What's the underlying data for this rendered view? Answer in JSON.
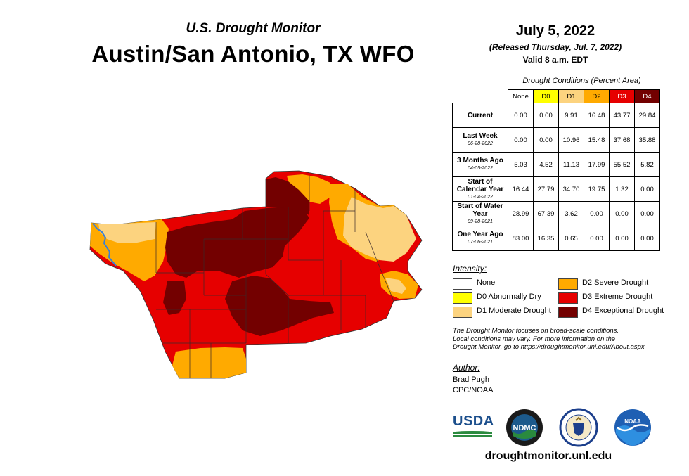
{
  "header": {
    "subtitle": "U.S. Drought Monitor",
    "title": "Austin/San Antonio, TX WFO"
  },
  "info": {
    "date": "July 5, 2022",
    "released": "(Released Thursday, Jul. 7, 2022)",
    "valid": "Valid 8 a.m. EDT"
  },
  "table": {
    "caption": "Drought Conditions (Percent Area)",
    "columns": [
      "None",
      "D0",
      "D1",
      "D2",
      "D3",
      "D4"
    ],
    "rows": [
      {
        "label": "Current",
        "sub": "",
        "values": [
          "0.00",
          "0.00",
          "9.91",
          "16.48",
          "43.77",
          "29.84"
        ]
      },
      {
        "label": "Last Week",
        "sub": "06-28-2022",
        "values": [
          "0.00",
          "0.00",
          "10.96",
          "15.48",
          "37.68",
          "35.88"
        ]
      },
      {
        "label": "3 Months Ago",
        "sub": "04-05-2022",
        "values": [
          "5.03",
          "4.52",
          "11.13",
          "17.99",
          "55.52",
          "5.82"
        ]
      },
      {
        "label": "Start of Calendar Year",
        "sub": "01-04-2022",
        "values": [
          "16.44",
          "27.79",
          "34.70",
          "19.75",
          "1.32",
          "0.00"
        ]
      },
      {
        "label": "Start of Water Year",
        "sub": "09-28-2021",
        "values": [
          "28.99",
          "67.39",
          "3.62",
          "0.00",
          "0.00",
          "0.00"
        ]
      },
      {
        "label": "One Year Ago",
        "sub": "07-06-2021",
        "values": [
          "83.00",
          "16.35",
          "0.65",
          "0.00",
          "0.00",
          "0.00"
        ]
      }
    ]
  },
  "legend": {
    "title": "Intensity:",
    "items": [
      {
        "label": "None",
        "color": "#ffffff"
      },
      {
        "label": "D0 Abnormally Dry",
        "color": "#ffff00"
      },
      {
        "label": "D1 Moderate Drought",
        "color": "#fcd37f"
      },
      {
        "label": "D2 Severe Drought",
        "color": "#ffaa00"
      },
      {
        "label": "D3 Extreme Drought",
        "color": "#e60000"
      },
      {
        "label": "D4 Exceptional Drought",
        "color": "#730000"
      }
    ]
  },
  "note": {
    "line1": "The Drought Monitor focuses on broad-scale conditions.",
    "line2": "Local conditions may vary. For more information on the",
    "line3": "Drought Monitor, go to https://droughtmonitor.unl.edu/About.aspx"
  },
  "author": {
    "title": "Author:",
    "name": "Brad Pugh",
    "org": "CPC/NOAA"
  },
  "logos": {
    "usda": "USDA",
    "ndmc": "NDMC",
    "noaa": "NOAA"
  },
  "footer": {
    "url": "droughtmonitor.unl.edu"
  },
  "colors": {
    "d1": "#fcd37f",
    "d2": "#ffaa00",
    "d3": "#e60000",
    "d4": "#730000",
    "river": "#3a7fd5"
  }
}
